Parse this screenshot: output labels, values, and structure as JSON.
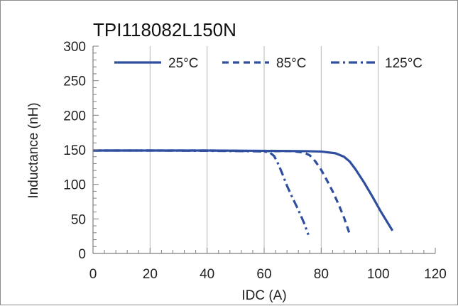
{
  "chart_data": {
    "type": "line",
    "title": "TPI118082L150N",
    "xlabel": "IDC (A)",
    "ylabel": "Inductance (nH)",
    "xlim": [
      0,
      120
    ],
    "ylim": [
      0,
      300
    ],
    "x_ticks": [
      "0",
      "20",
      "40",
      "60",
      "80",
      "100",
      "120"
    ],
    "y_ticks": [
      "0",
      "50",
      "100",
      "150",
      "200",
      "250",
      "300"
    ],
    "grid": "vertical major gridlines",
    "legend_position": "top",
    "line_color": "#2f4f9e",
    "series": [
      {
        "name": "25°C",
        "style": "solid",
        "points": [
          [
            0,
            149
          ],
          [
            20,
            149
          ],
          [
            40,
            149
          ],
          [
            60,
            148.5
          ],
          [
            75,
            148
          ],
          [
            80,
            147.5
          ],
          [
            85,
            145
          ],
          [
            88,
            140
          ],
          [
            90,
            133
          ],
          [
            92,
            122
          ],
          [
            95,
            103
          ],
          [
            98,
            82
          ],
          [
            101,
            60
          ],
          [
            105,
            33
          ]
        ]
      },
      {
        "name": "85°C",
        "style": "dashed",
        "points": [
          [
            0,
            149
          ],
          [
            20,
            149
          ],
          [
            40,
            149
          ],
          [
            60,
            148
          ],
          [
            70,
            148
          ],
          [
            74,
            146
          ],
          [
            76,
            142
          ],
          [
            78,
            133
          ],
          [
            80,
            121
          ],
          [
            82,
            106
          ],
          [
            84,
            90
          ],
          [
            86,
            72
          ],
          [
            88,
            52
          ],
          [
            90,
            28
          ]
        ]
      },
      {
        "name": "125°C",
        "style": "dash-dot",
        "points": [
          [
            0,
            149
          ],
          [
            20,
            149
          ],
          [
            40,
            148.5
          ],
          [
            55,
            148
          ],
          [
            60,
            147.5
          ],
          [
            62,
            146
          ],
          [
            63.5,
            141
          ],
          [
            65,
            129
          ],
          [
            66.5,
            114
          ],
          [
            68,
            98
          ],
          [
            70,
            80
          ],
          [
            72,
            63
          ],
          [
            74,
            44
          ],
          [
            75.5,
            27
          ]
        ]
      }
    ]
  }
}
